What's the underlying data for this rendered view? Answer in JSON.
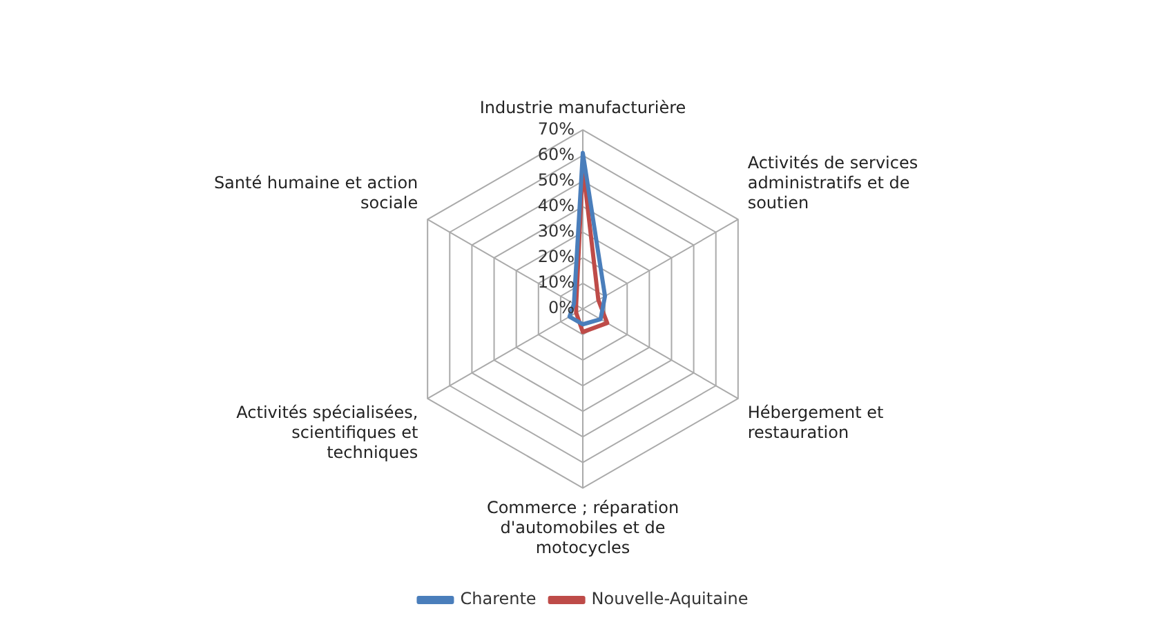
{
  "chart_data": {
    "type": "radar",
    "categories": [
      "Industrie manufacturière",
      "Activités de services administratifs et de soutien",
      "Hébergement et restauration",
      "Commerce ; réparation d'automobiles et de motocycles",
      "Activités spécialisées, scientifiques et techniques",
      "Santé humaine et action sociale"
    ],
    "series": [
      {
        "name": "Charente",
        "color": "#4a7ebb",
        "values": [
          61,
          10,
          8,
          6,
          6,
          4
        ]
      },
      {
        "name": "Nouvelle-Aquitaine",
        "color": "#be4b48",
        "values": [
          56,
          7,
          11,
          9,
          3,
          3
        ]
      }
    ],
    "ylim": [
      0,
      70
    ],
    "yticks": [
      {
        "value": 0,
        "label": "0%"
      },
      {
        "value": 10,
        "label": "10%"
      },
      {
        "value": 20,
        "label": "20%"
      },
      {
        "value": 30,
        "label": "30%"
      },
      {
        "value": 40,
        "label": "40%"
      },
      {
        "value": 50,
        "label": "50%"
      },
      {
        "value": 60,
        "label": "60%"
      },
      {
        "value": 70,
        "label": "70%"
      }
    ],
    "grid": true,
    "legend": "bottom",
    "marker": "none",
    "line_style": "solid"
  }
}
